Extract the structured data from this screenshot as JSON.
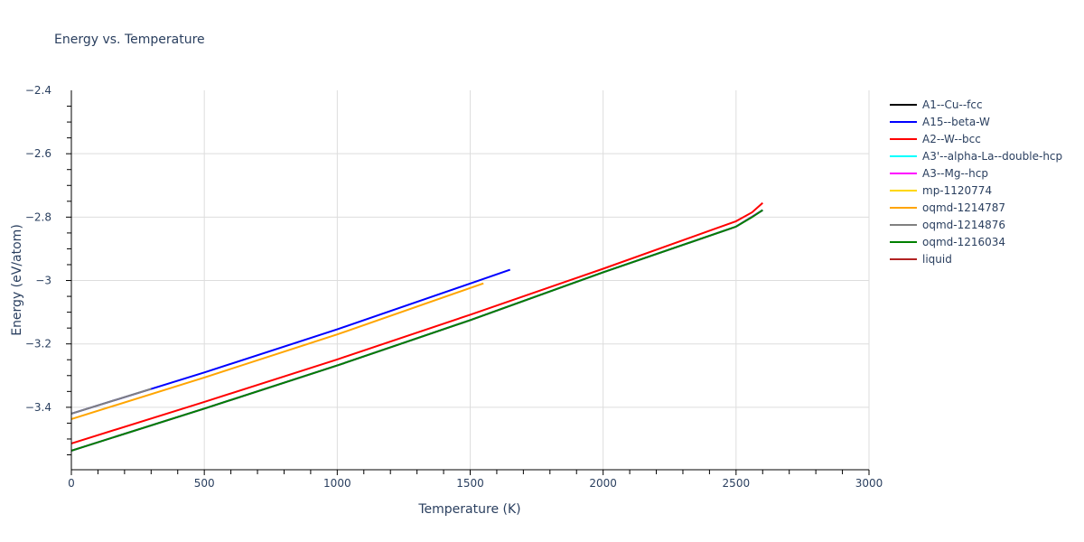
{
  "chart": {
    "title": "Energy vs. Temperature",
    "xaxis": {
      "title": "Temperature (K)",
      "range": [
        0,
        3000
      ],
      "ticks": [
        0,
        500,
        1000,
        1500,
        2000,
        2500,
        3000
      ],
      "tick_labels": [
        "0",
        "500",
        "1000",
        "1500",
        "2000",
        "2500",
        "3000"
      ]
    },
    "yaxis": {
      "title": "Energy (eV/atom)",
      "range": [
        -3.597,
        -2.4
      ],
      "ticks": [
        -2.4,
        -2.6,
        -2.8,
        -3,
        -3.2,
        -3.4
      ],
      "tick_labels": [
        "−2.4",
        "−2.6",
        "−2.8",
        "−3",
        "−3.2",
        "−3.4"
      ]
    }
  },
  "legend": [
    {
      "label": "A1--Cu--fcc",
      "color": "#000000"
    },
    {
      "label": "A15--beta-W",
      "color": "#0000ff"
    },
    {
      "label": "A2--W--bcc",
      "color": "#ff0000"
    },
    {
      "label": "A3'--alpha-La--double-hcp",
      "color": "#00ffff"
    },
    {
      "label": "A3--Mg--hcp",
      "color": "#ff00ff"
    },
    {
      "label": "mp-1120774",
      "color": "#ffd700"
    },
    {
      "label": "oqmd-1214787",
      "color": "#ffa500"
    },
    {
      "label": "oqmd-1214876",
      "color": "#808080"
    },
    {
      "label": "oqmd-1216034",
      "color": "#008000"
    },
    {
      "label": "liquid",
      "color": "#b22222"
    }
  ],
  "chart_data": {
    "type": "line",
    "title": "Energy vs. Temperature",
    "xlabel": "Temperature (K)",
    "ylabel": "Energy (eV/atom)",
    "xlim": [
      0,
      3000
    ],
    "ylim": [
      -3.597,
      -2.4
    ],
    "grid": true,
    "legend_position": "right",
    "series": [
      {
        "name": "A1--Cu--fcc",
        "color": "#000000",
        "x": [
          0,
          500,
          1000,
          1500,
          2000,
          2500,
          2600
        ],
        "y": [
          -3.537,
          -3.404,
          -3.268,
          -3.125,
          -2.974,
          -2.83,
          -2.778
        ]
      },
      {
        "name": "A3'--alpha-La--double-hcp",
        "color": "#00ffff",
        "x": [
          0,
          500,
          1000,
          1500,
          2000,
          2500,
          2600
        ],
        "y": [
          -3.537,
          -3.404,
          -3.268,
          -3.125,
          -2.974,
          -2.83,
          -2.778
        ]
      },
      {
        "name": "A3--Mg--hcp",
        "color": "#ff00ff",
        "x": [
          0,
          500,
          1000,
          1500,
          2000,
          2500,
          2600
        ],
        "y": [
          -3.537,
          -3.404,
          -3.268,
          -3.125,
          -2.974,
          -2.83,
          -2.778
        ]
      },
      {
        "name": "oqmd-1216034",
        "color": "#008000",
        "x": [
          0,
          500,
          1000,
          1500,
          2000,
          2500,
          2560,
          2600
        ],
        "y": [
          -3.537,
          -3.404,
          -3.268,
          -3.125,
          -2.974,
          -2.83,
          -2.8,
          -2.778
        ]
      },
      {
        "name": "A2--W--bcc",
        "color": "#ff0000",
        "x": [
          0,
          500,
          1000,
          1500,
          2000,
          2500,
          2560,
          2600
        ],
        "y": [
          -3.514,
          -3.383,
          -3.249,
          -3.108,
          -2.963,
          -2.813,
          -2.785,
          -2.755
        ]
      },
      {
        "name": "oqmd-1214787",
        "color": "#ffa500",
        "x": [
          0,
          500,
          1000,
          1550
        ],
        "y": [
          -3.437,
          -3.306,
          -3.17,
          -3.009
        ]
      },
      {
        "name": "A15--beta-W",
        "color": "#0000ff",
        "x": [
          0,
          500,
          1000,
          1650
        ],
        "y": [
          -3.42,
          -3.29,
          -3.154,
          -2.966
        ]
      },
      {
        "name": "oqmd-1214876",
        "color": "#808080",
        "x": [
          0,
          300
        ],
        "y": [
          -3.42,
          -3.342
        ]
      }
    ]
  }
}
